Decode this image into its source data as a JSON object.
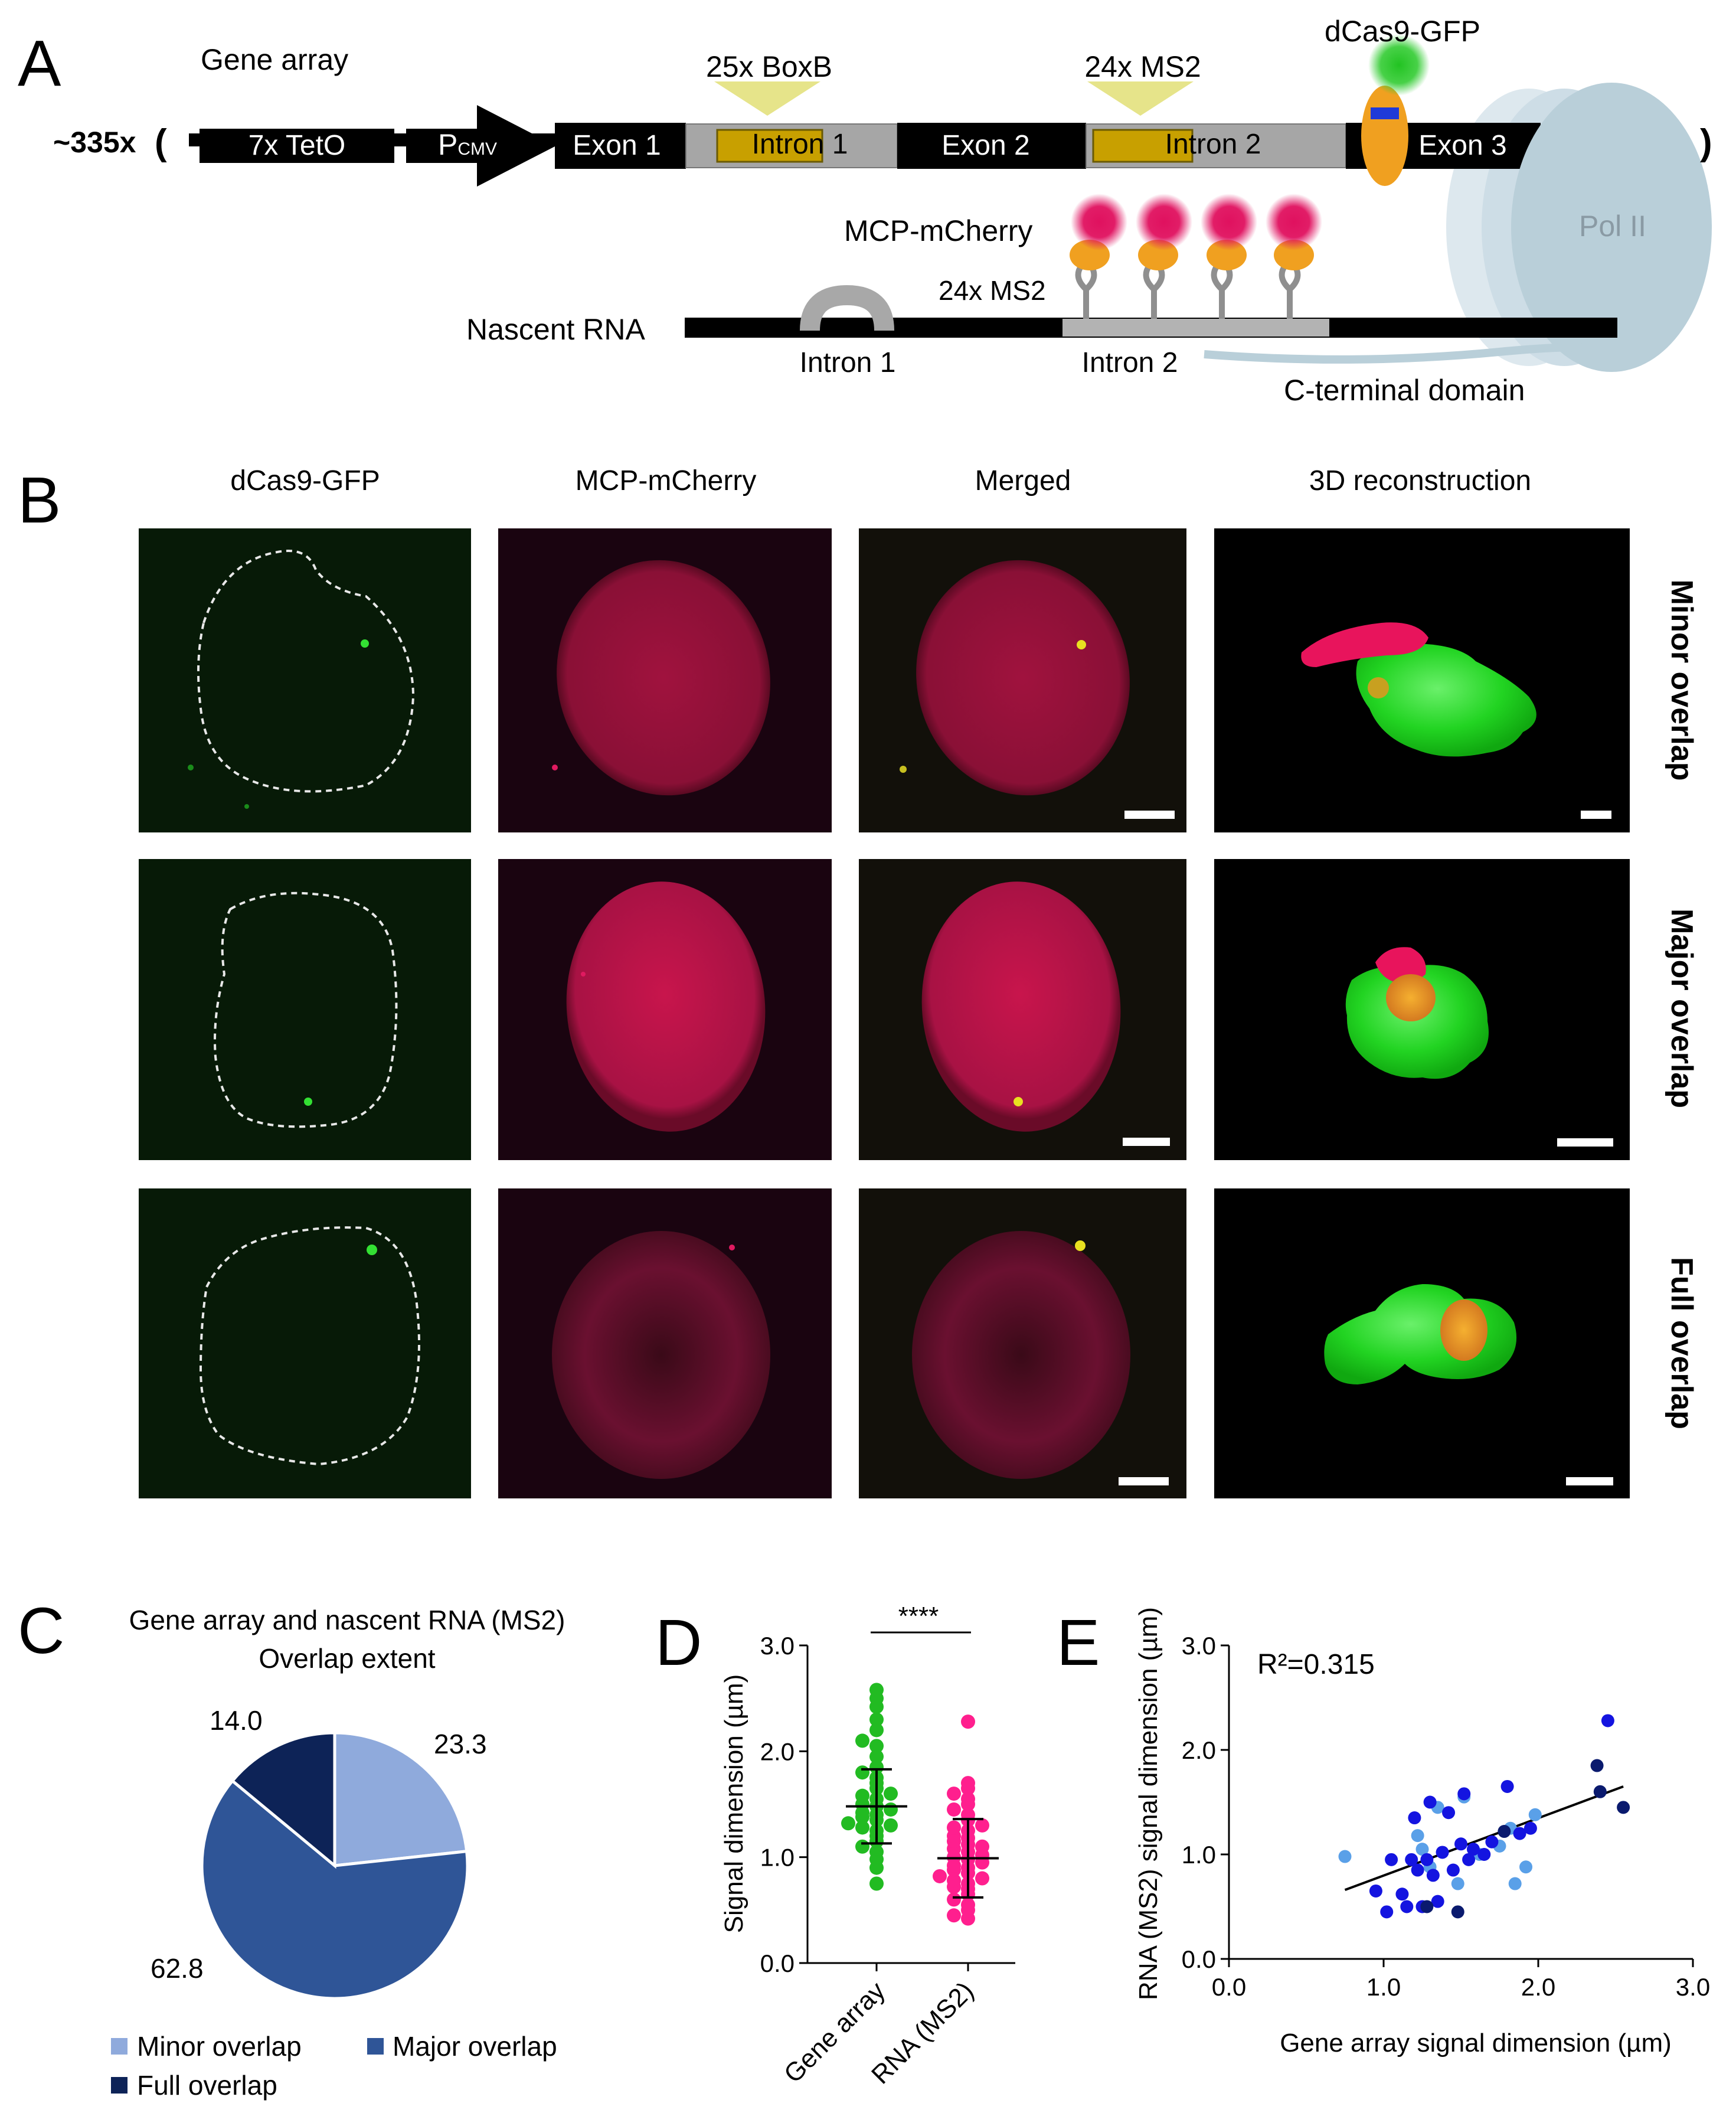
{
  "panels": {
    "a": {
      "label": "A",
      "gene_array": "Gene array",
      "copies": "~335x",
      "paren_open": "(",
      "paren_close": ")",
      "tetO": "7x TetO",
      "promoter": "P",
      "promoter_sub": "CMV",
      "exon1": "Exon 1",
      "intron1": "Intron 1",
      "exon2": "Exon 2",
      "intron2": "Intron 2",
      "exon3": "Exon 3",
      "boxb": "25x BoxB",
      "ms2_top": "24x MS2",
      "dcas9": "dCas9-GFP",
      "mcp": "MCP-mCherry",
      "ms2_rna": "24x MS2",
      "nascent": "Nascent RNA",
      "intron1_rna": "Intron 1",
      "intron2_rna": "Intron 2",
      "ctd": "C-terminal domain",
      "pol2": "Pol II"
    },
    "b": {
      "label": "B",
      "columns": [
        "dCas9-GFP",
        "MCP-mCherry",
        "Merged",
        "3D reconstruction"
      ],
      "rows": [
        "Minor overlap",
        "Major overlap",
        "Full overlap"
      ]
    },
    "c": {
      "label": "C",
      "title_line1": "Gene array and nascent RNA (MS2)",
      "title_line2": "Overlap extent",
      "legend": [
        "Minor overlap",
        "Major overlap",
        "Full overlap"
      ]
    },
    "d": {
      "label": "D",
      "significance": "****"
    },
    "e": {
      "label": "E",
      "r2": "R²=0.315"
    }
  },
  "colors": {
    "minor": "#8faadc",
    "major": "#2f5597",
    "full": "#0d2357",
    "gene_array_dots": "#22bb22",
    "rna_dots": "#ff1f8e",
    "scatter_light": "#5aa0e8",
    "scatter_mid": "#1414e0",
    "scatter_dark": "#0a1a6e"
  },
  "chart_data": [
    {
      "id": "C",
      "type": "pie",
      "title": "Gene array and nascent RNA (MS2) Overlap extent",
      "labels": [
        "Minor overlap",
        "Major overlap",
        "Full overlap"
      ],
      "values": [
        23.3,
        62.8,
        14.0
      ],
      "value_labels": [
        "23.3",
        "62.8",
        "14.0"
      ]
    },
    {
      "id": "D",
      "type": "scatter",
      "subtype": "dot-plot",
      "categories": [
        "Gene array",
        "RNA (MS2)"
      ],
      "ylabel": "Signal dimension (µm)",
      "ylim": [
        0,
        3
      ],
      "yticks": [
        "0.0",
        "1.0",
        "2.0",
        "3.0"
      ],
      "series": [
        {
          "name": "Gene array",
          "mean": 1.48,
          "sd": 0.35,
          "values": [
            2.58,
            2.5,
            2.42,
            2.3,
            2.2,
            2.1,
            2.05,
            1.95,
            1.85,
            1.8,
            1.75,
            1.7,
            1.65,
            1.6,
            1.58,
            1.55,
            1.5,
            1.48,
            1.45,
            1.42,
            1.4,
            1.38,
            1.35,
            1.32,
            1.3,
            1.28,
            1.25,
            1.2,
            1.15,
            1.1,
            1.05,
            0.98,
            0.9,
            0.75
          ]
        },
        {
          "name": "RNA (MS2)",
          "mean": 0.99,
          "sd": 0.37,
          "values": [
            2.28,
            1.7,
            1.65,
            1.6,
            1.55,
            1.5,
            1.45,
            1.4,
            1.35,
            1.3,
            1.28,
            1.25,
            1.2,
            1.18,
            1.15,
            1.12,
            1.1,
            1.08,
            1.05,
            1.02,
            1.0,
            0.98,
            0.95,
            0.92,
            0.9,
            0.88,
            0.85,
            0.82,
            0.8,
            0.78,
            0.75,
            0.72,
            0.7,
            0.65,
            0.6,
            0.55,
            0.5,
            0.45,
            0.42
          ]
        }
      ],
      "significance": "****"
    },
    {
      "id": "E",
      "type": "scatter",
      "xlabel": "Gene array signal dimension (µm)",
      "ylabel": "RNA (MS2) signal dimension (µm)",
      "xlim": [
        0,
        3
      ],
      "ylim": [
        0,
        3
      ],
      "xticks": [
        "0.0",
        "1.0",
        "2.0",
        "3.0"
      ],
      "yticks": [
        "0.0",
        "1.0",
        "2.0",
        "3.0"
      ],
      "annotation": "R²=0.315",
      "fit": {
        "x": [
          0.75,
          2.55
        ],
        "y": [
          0.66,
          1.65
        ]
      },
      "series": [
        {
          "name": "Minor overlap",
          "color": "#5aa0e8",
          "points": [
            [
              0.75,
              0.98
            ],
            [
              1.22,
              1.18
            ],
            [
              1.25,
              1.05
            ],
            [
              1.3,
              0.88
            ],
            [
              1.35,
              1.45
            ],
            [
              1.48,
              0.72
            ],
            [
              1.52,
              1.55
            ],
            [
              1.62,
              1.0
            ],
            [
              1.75,
              1.08
            ],
            [
              1.82,
              1.25
            ],
            [
              1.85,
              0.72
            ],
            [
              1.92,
              0.88
            ],
            [
              1.98,
              1.38
            ]
          ]
        },
        {
          "name": "Major overlap",
          "color": "#1414e0",
          "points": [
            [
              0.95,
              0.65
            ],
            [
              1.02,
              0.45
            ],
            [
              1.05,
              0.95
            ],
            [
              1.12,
              0.62
            ],
            [
              1.15,
              0.5
            ],
            [
              1.18,
              0.95
            ],
            [
              1.2,
              1.35
            ],
            [
              1.22,
              0.85
            ],
            [
              1.25,
              0.5
            ],
            [
              1.28,
              0.95
            ],
            [
              1.3,
              1.5
            ],
            [
              1.32,
              0.8
            ],
            [
              1.35,
              0.55
            ],
            [
              1.38,
              1.02
            ],
            [
              1.42,
              1.4
            ],
            [
              1.45,
              0.85
            ],
            [
              1.5,
              1.1
            ],
            [
              1.52,
              1.58
            ],
            [
              1.55,
              0.95
            ],
            [
              1.58,
              1.05
            ],
            [
              1.65,
              1.0
            ],
            [
              1.7,
              1.12
            ],
            [
              1.8,
              1.65
            ],
            [
              1.88,
              1.2
            ],
            [
              1.95,
              1.25
            ],
            [
              2.45,
              2.28
            ]
          ]
        },
        {
          "name": "Full overlap",
          "color": "#0a1a6e",
          "points": [
            [
              1.28,
              0.5
            ],
            [
              1.48,
              0.45
            ],
            [
              1.78,
              1.22
            ],
            [
              2.38,
              1.85
            ],
            [
              2.4,
              1.6
            ],
            [
              2.55,
              1.45
            ]
          ]
        }
      ]
    }
  ]
}
